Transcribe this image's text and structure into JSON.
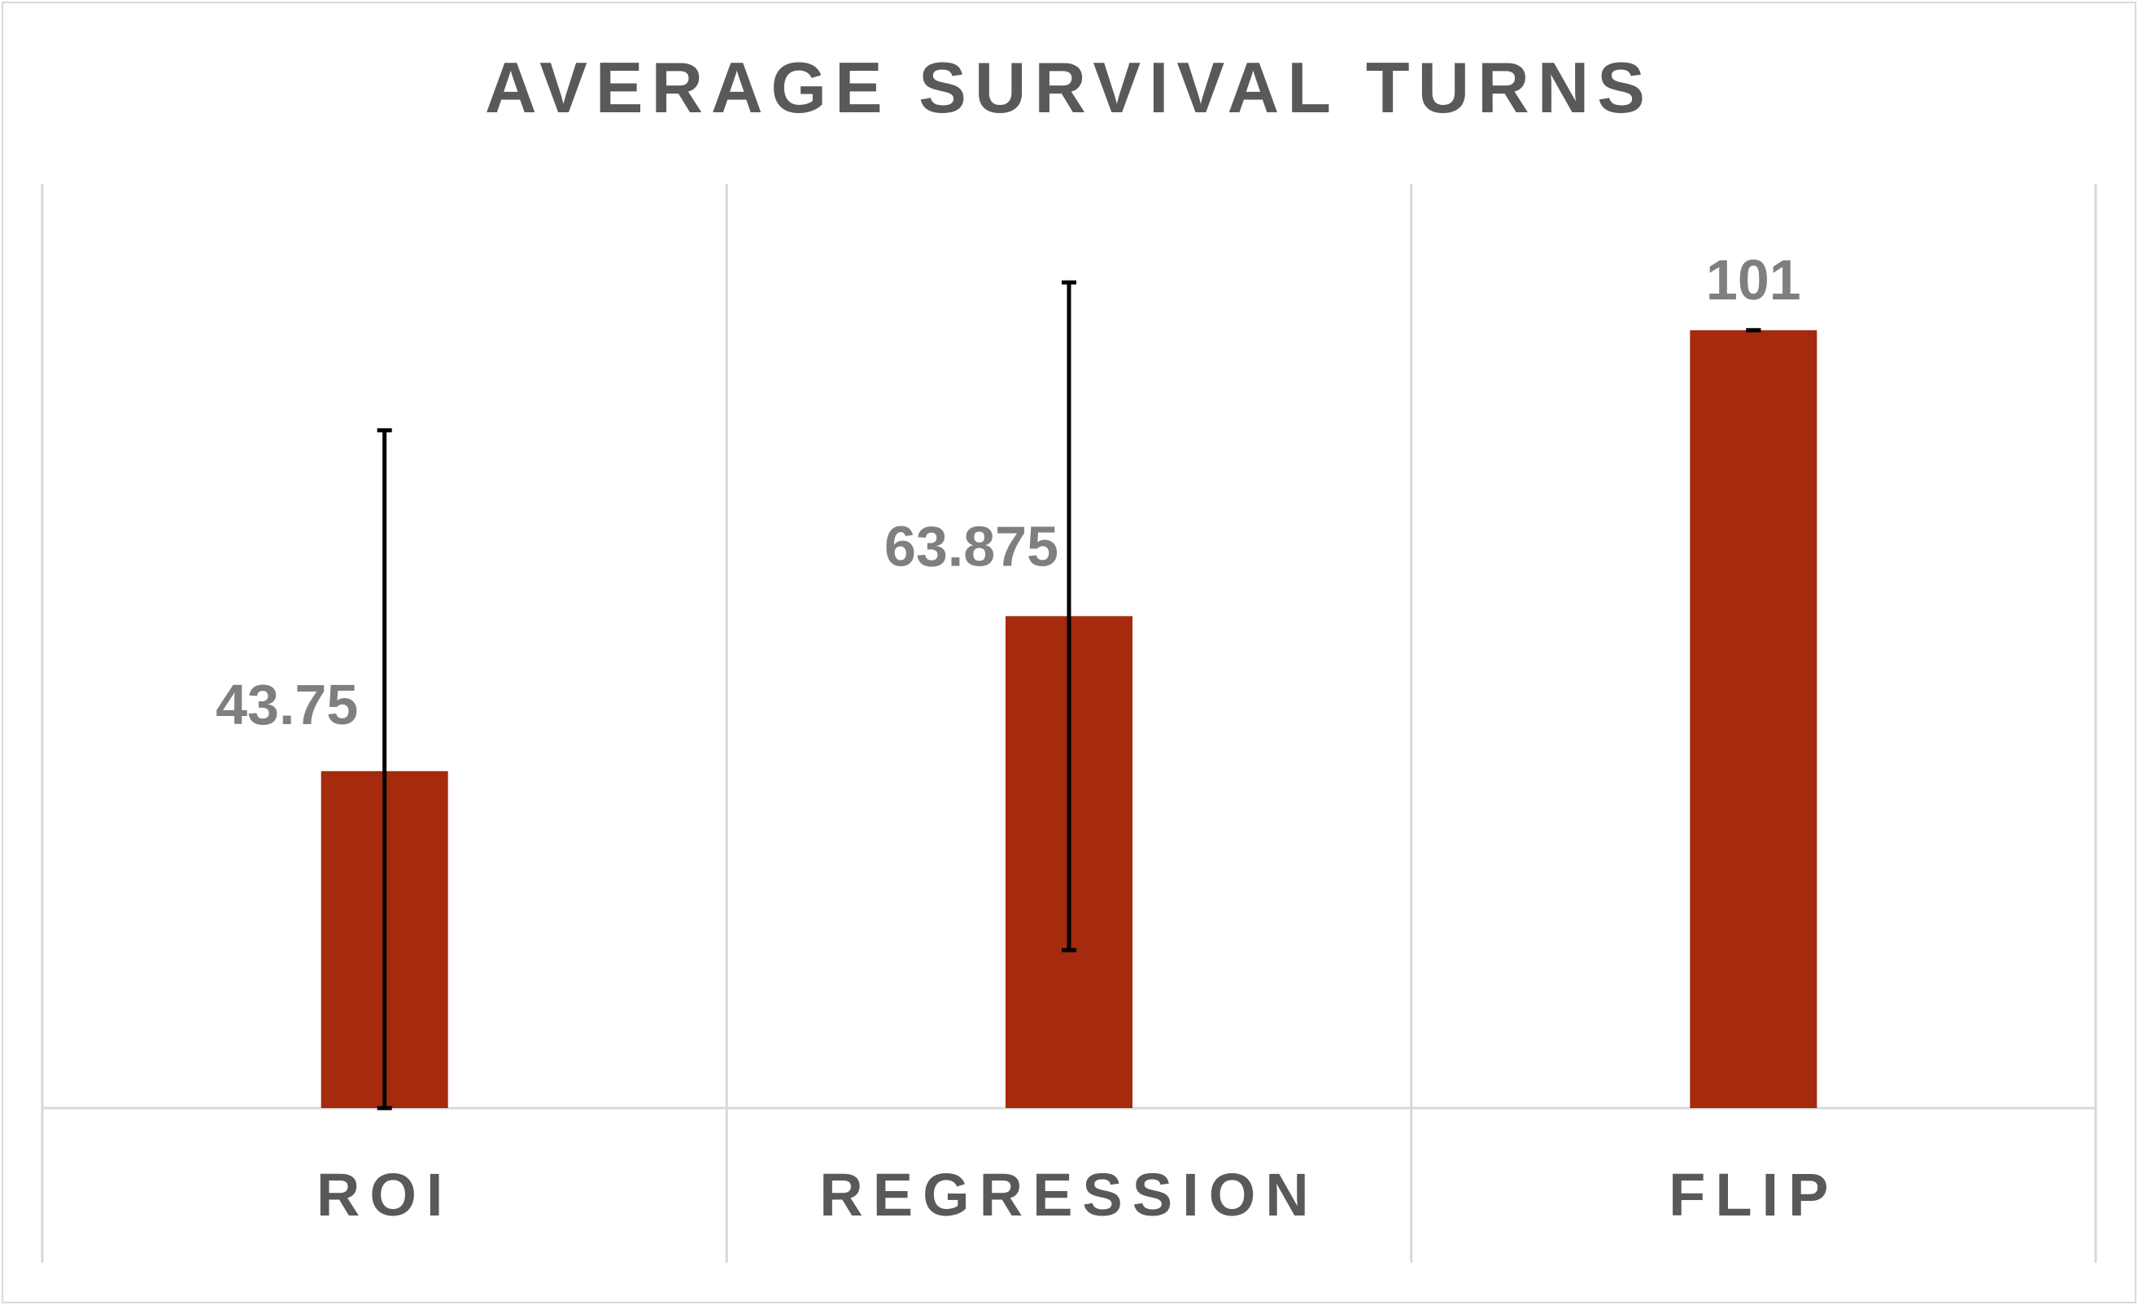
{
  "chart_data": {
    "type": "bar",
    "title": "AVERAGE SURVIVAL TURNS",
    "categories": [
      "ROI",
      "REGRESSION",
      "FLIP"
    ],
    "values": [
      43.75,
      63.875,
      101
    ],
    "value_labels": [
      "43.75",
      "63.875",
      "101"
    ],
    "error_bars": [
      {
        "low": 0,
        "high": 88
      },
      {
        "low": 20.5,
        "high": 107.2
      },
      {
        "low": 101,
        "high": 101
      }
    ],
    "ylim": [
      0,
      120
    ],
    "xlabel": "",
    "ylabel": "",
    "grid": "vertical category separators",
    "legend": "none",
    "colors": {
      "bar": "#a52a0e",
      "error_bar": "#000000",
      "grid": "#d9d9d9",
      "title": "#595959",
      "label": "#7f7f7f"
    }
  }
}
